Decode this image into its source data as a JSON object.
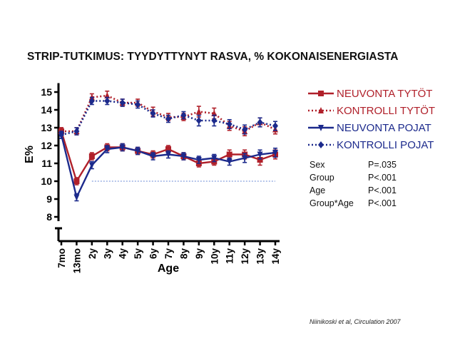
{
  "title": "STRIP-TUTKIMUS: TYYDYTTYNYT RASVA, % KOKONAISENERGIASTA",
  "citation": "Niinikoski et al, Circulation 2007",
  "stats": [
    {
      "label": "Sex",
      "value": "P=.035"
    },
    {
      "label": "Group",
      "value": "P<.001"
    },
    {
      "label": "Age",
      "value": "P<.001"
    },
    {
      "label": "Group*Age",
      "value": "P<.001"
    }
  ],
  "chart_data": {
    "type": "line",
    "title": "STRIP-TUTKIMUS: TYYDYTTYNYT RASVA, % KOKONAISENERGIASTA",
    "xlabel": "Age",
    "ylabel": "E%",
    "categories": [
      "7mo",
      "13mo",
      "2y",
      "3y",
      "4y",
      "5y",
      "6y",
      "7y",
      "8y",
      "9y",
      "10y",
      "11y",
      "12y",
      "13y",
      "14y"
    ],
    "yticks": [
      8,
      9,
      10,
      11,
      12,
      13,
      14,
      15
    ],
    "ylim": [
      5.0,
      15.5
    ],
    "axis_break": true,
    "reference_line": 10,
    "legend_position": "right",
    "series": [
      {
        "name": "NEUVONTA TYTÖT",
        "color": "#b0202a",
        "dash": "solid",
        "marker": "square",
        "values": [
          12.8,
          10.0,
          11.4,
          11.9,
          11.9,
          11.7,
          11.5,
          11.8,
          11.4,
          11.0,
          11.1,
          11.5,
          11.5,
          11.2,
          11.5
        ],
        "err": [
          0.2,
          0.2,
          0.2,
          0.2,
          0.2,
          0.2,
          0.2,
          0.2,
          0.2,
          0.2,
          0.2,
          0.25,
          0.25,
          0.3,
          0.25
        ]
      },
      {
        "name": "KONTROLLI TYTÖT",
        "color": "#b0202a",
        "dash": "dotted",
        "marker": "triangle",
        "values": [
          12.8,
          12.8,
          14.7,
          14.8,
          14.4,
          14.4,
          13.9,
          13.6,
          13.6,
          13.9,
          13.8,
          13.1,
          12.8,
          13.3,
          12.9
        ],
        "err": [
          0.2,
          0.2,
          0.2,
          0.25,
          0.2,
          0.2,
          0.25,
          0.2,
          0.2,
          0.3,
          0.3,
          0.25,
          0.25,
          0.25,
          0.25
        ]
      },
      {
        "name": "NEUVONTA POJAT",
        "color": "#1c2a8c",
        "dash": "solid",
        "marker": "triangle-down",
        "values": [
          12.6,
          9.1,
          10.9,
          11.8,
          11.9,
          11.7,
          11.4,
          11.5,
          11.4,
          11.2,
          11.3,
          11.1,
          11.3,
          11.5,
          11.6
        ],
        "err": [
          0.2,
          0.2,
          0.2,
          0.2,
          0.2,
          0.2,
          0.2,
          0.2,
          0.2,
          0.2,
          0.2,
          0.2,
          0.25,
          0.25,
          0.25
        ]
      },
      {
        "name": "KONTROLLI POJAT",
        "color": "#1c2a8c",
        "dash": "dotted",
        "marker": "diamond",
        "values": [
          12.6,
          12.8,
          14.5,
          14.5,
          14.4,
          14.3,
          13.8,
          13.5,
          13.7,
          13.4,
          13.4,
          13.2,
          12.9,
          13.3,
          13.1
        ],
        "err": [
          0.2,
          0.2,
          0.2,
          0.2,
          0.2,
          0.2,
          0.2,
          0.2,
          0.2,
          0.3,
          0.3,
          0.25,
          0.25,
          0.25,
          0.25
        ]
      }
    ]
  }
}
